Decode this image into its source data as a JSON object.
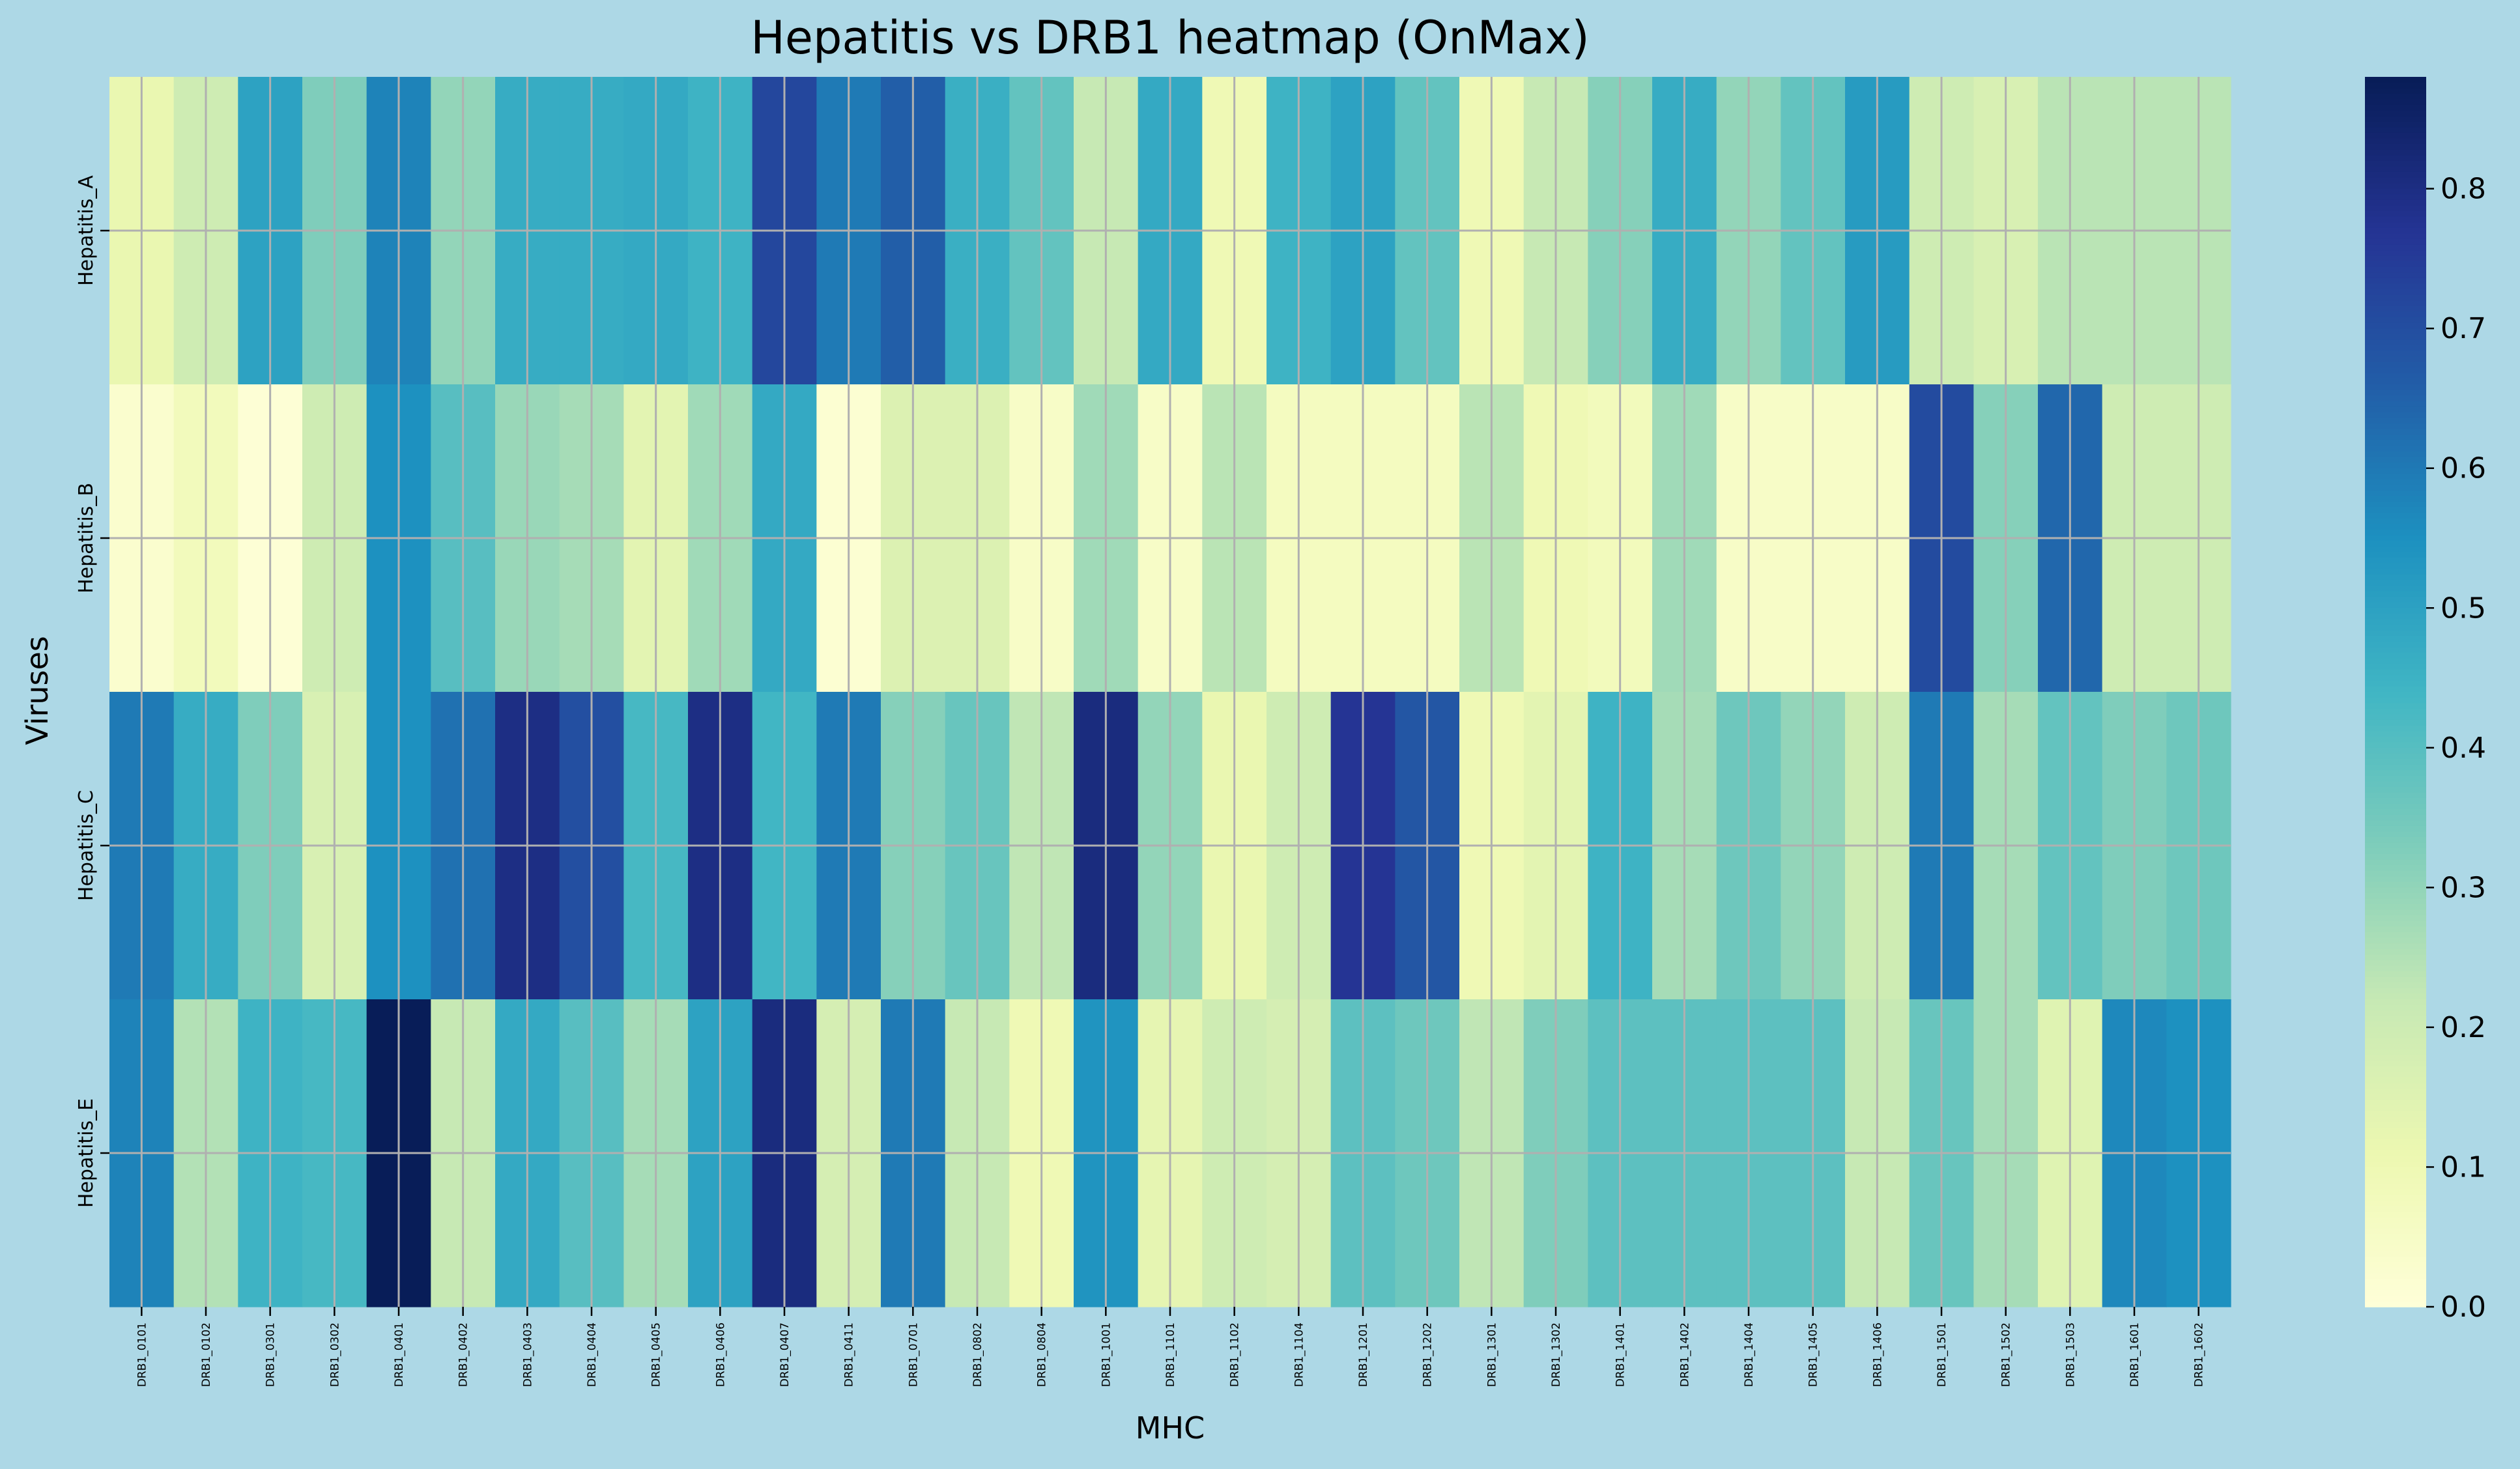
{
  "chart_data": {
    "type": "heatmap",
    "title": "Hepatitis vs DRB1 heatmap (OnMax)",
    "xlabel": "MHC",
    "ylabel": "Viruses",
    "grid": true,
    "colormap": "YlGnBu",
    "colorbar": {
      "min": 0.0,
      "max": 0.88,
      "ticks": [
        0.0,
        0.1,
        0.2,
        0.3,
        0.4,
        0.5,
        0.6,
        0.7,
        0.8
      ],
      "tick_labels": [
        "0.0",
        "0.1",
        "0.2",
        "0.3",
        "0.4",
        "0.5",
        "0.6",
        "0.7",
        "0.8"
      ]
    },
    "x_categories": [
      "DRB1_0101",
      "DRB1_0102",
      "DRB1_0301",
      "DRB1_0302",
      "DRB1_0401",
      "DRB1_0402",
      "DRB1_0403",
      "DRB1_0404",
      "DRB1_0405",
      "DRB1_0406",
      "DRB1_0407",
      "DRB1_0411",
      "DRB1_0701",
      "DRB1_0802",
      "DRB1_0804",
      "DRB1_1001",
      "DRB1_1101",
      "DRB1_1102",
      "DRB1_1104",
      "DRB1_1201",
      "DRB1_1202",
      "DRB1_1301",
      "DRB1_1302",
      "DRB1_1401",
      "DRB1_1402",
      "DRB1_1404",
      "DRB1_1405",
      "DRB1_1406",
      "DRB1_1501",
      "DRB1_1502",
      "DRB1_1503",
      "DRB1_1601",
      "DRB1_1602"
    ],
    "y_categories": [
      "Hepatitis_A",
      "Hepatitis_B",
      "Hepatitis_C",
      "Hepatitis_E"
    ],
    "values": [
      [
        0.12,
        0.2,
        0.5,
        0.33,
        0.58,
        0.3,
        0.47,
        0.47,
        0.48,
        0.45,
        0.72,
        0.6,
        0.66,
        0.46,
        0.38,
        0.22,
        0.48,
        0.1,
        0.45,
        0.5,
        0.38,
        0.1,
        0.22,
        0.32,
        0.47,
        0.3,
        0.38,
        0.52,
        0.2,
        0.17,
        0.24,
        0.24,
        0.24
      ],
      [
        0.03,
        0.08,
        0.01,
        0.2,
        0.55,
        0.4,
        0.29,
        0.27,
        0.14,
        0.28,
        0.48,
        0.02,
        0.16,
        0.16,
        0.05,
        0.28,
        0.05,
        0.24,
        0.07,
        0.07,
        0.07,
        0.24,
        0.1,
        0.08,
        0.28,
        0.05,
        0.05,
        0.05,
        0.71,
        0.32,
        0.64,
        0.2,
        0.2
      ],
      [
        0.6,
        0.47,
        0.33,
        0.17,
        0.55,
        0.62,
        0.8,
        0.7,
        0.43,
        0.8,
        0.44,
        0.6,
        0.32,
        0.37,
        0.23,
        0.81,
        0.3,
        0.12,
        0.2,
        0.77,
        0.68,
        0.1,
        0.14,
        0.45,
        0.27,
        0.36,
        0.3,
        0.2,
        0.6,
        0.27,
        0.38,
        0.33,
        0.36
      ],
      [
        0.58,
        0.25,
        0.45,
        0.43,
        0.88,
        0.22,
        0.48,
        0.4,
        0.27,
        0.5,
        0.81,
        0.18,
        0.6,
        0.22,
        0.1,
        0.54,
        0.13,
        0.2,
        0.18,
        0.39,
        0.36,
        0.23,
        0.33,
        0.39,
        0.39,
        0.39,
        0.39,
        0.22,
        0.37,
        0.27,
        0.15,
        0.57,
        0.55
      ]
    ]
  },
  "colors": {
    "background": "#ADD8E6",
    "grid": "#B0B0B0",
    "text": "#000000",
    "colormap_stops": [
      "#ffffd9",
      "#edf8b1",
      "#c7e9b4",
      "#7fcdbb",
      "#41b6c4",
      "#1d91c0",
      "#225ea8",
      "#253494",
      "#081d58"
    ]
  }
}
